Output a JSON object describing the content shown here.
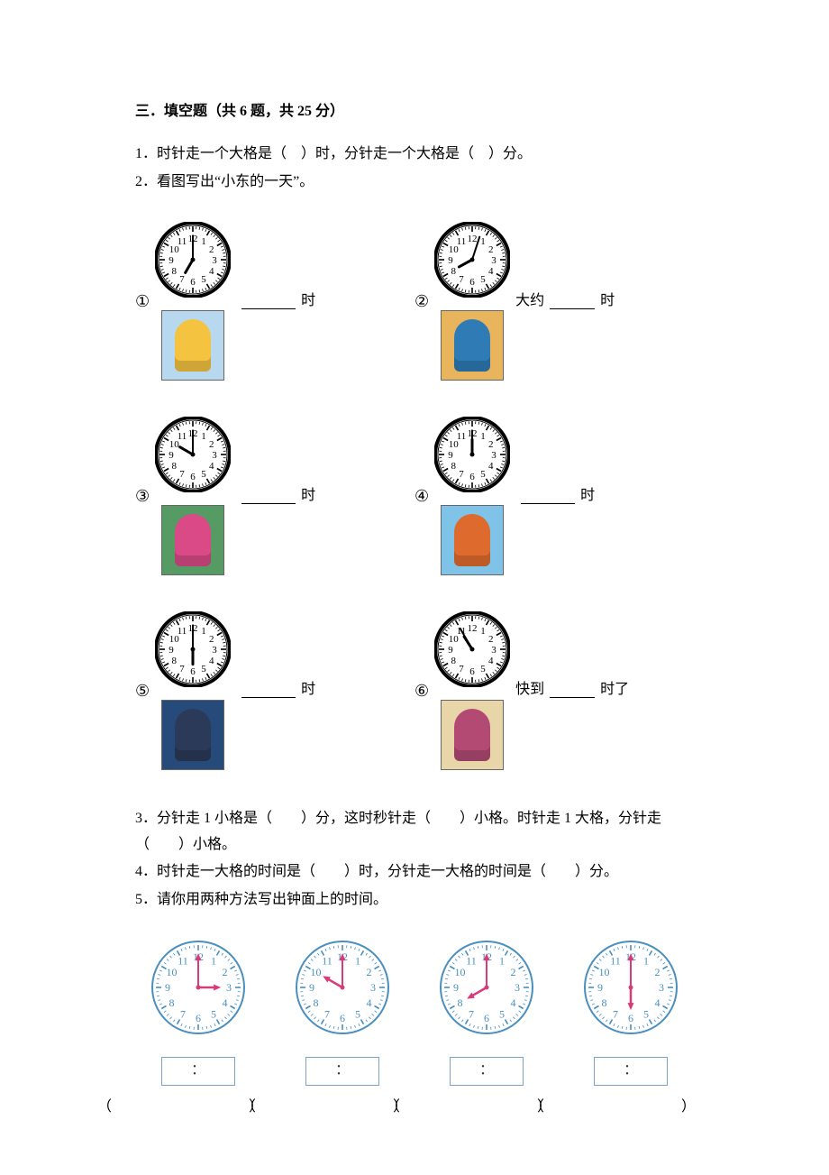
{
  "heading": "三．填空题（共 6 题，共 25 分）",
  "q1": "1．时针走一个大格是（　）时，分针走一个大格是（　）分。",
  "q2_intro": "2．看图写出“小东的一天”。",
  "q2_items": [
    {
      "num": "①",
      "prefix": "",
      "suffix_a": "时",
      "suffix_b": "",
      "clock": {
        "hour": 7,
        "minute": 0,
        "style": "bw"
      },
      "scene_bg": "#b7d8ee",
      "kid_bg": "#f4c340"
    },
    {
      "num": "②",
      "prefix": "大约",
      "suffix_a": "时",
      "suffix_b": "",
      "clock": {
        "hour": 8,
        "minute": 3,
        "style": "bw"
      },
      "scene_bg": "#e8b45c",
      "kid_bg": "#2e7bb6"
    },
    {
      "num": "③",
      "prefix": "",
      "suffix_a": "时",
      "suffix_b": "",
      "clock": {
        "hour": 10,
        "minute": 0,
        "style": "bw"
      },
      "scene_bg": "#569a64",
      "kid_bg": "#d94a86"
    },
    {
      "num": "④",
      "prefix": "",
      "suffix_a": "时",
      "suffix_b": "",
      "clock": {
        "hour": 12,
        "minute": 0,
        "style": "bw"
      },
      "scene_bg": "#7fc4e8",
      "kid_bg": "#de6a2d"
    },
    {
      "num": "⑤",
      "prefix": "",
      "suffix_a": "时",
      "suffix_b": "",
      "clock": {
        "hour": 6,
        "minute": 0,
        "style": "bw"
      },
      "scene_bg": "#264a7a",
      "kid_bg": "#2a3a58"
    },
    {
      "num": "⑥",
      "prefix": "快到",
      "suffix_a": "时了",
      "suffix_b": "",
      "clock": {
        "hour": 10,
        "minute": 55,
        "style": "bw"
      },
      "scene_bg": "#e8d5a8",
      "kid_bg": "#b24a74"
    }
  ],
  "q3": "3．分针走 1 小格是（　　）分，这时秒针走（　　）小格。时针走 1 大格，分针走（　　）小格。",
  "q4": "4．时针走一大格的时间是（　　）时，分针走一大格的时间是（　　）分。",
  "q5_intro": "5．请你用两种方法写出钟面上的时间。",
  "q5_clocks": [
    {
      "hour": 3,
      "minute": 0,
      "style": "blue"
    },
    {
      "hour": 10,
      "minute": 0,
      "style": "blue"
    },
    {
      "hour": 8,
      "minute": 0,
      "style": "blue"
    },
    {
      "hour": 6,
      "minute": 0,
      "style": "blue"
    }
  ],
  "q5_box_colon": "：",
  "q5_paren": "（　　）",
  "clock_style": {
    "bw": {
      "rim_outer": "#000000",
      "rim_inner": "#ffffff",
      "tick": "#000000",
      "num": "#000000",
      "hand": "#000000",
      "size": 84
    },
    "blue": {
      "rim_outer": "#4a8fbe",
      "rim_inner": "#ffffff",
      "tick": "#4a8fbe",
      "num": "#4a8fbe",
      "hand": "#d83a7a",
      "size": 104
    }
  }
}
